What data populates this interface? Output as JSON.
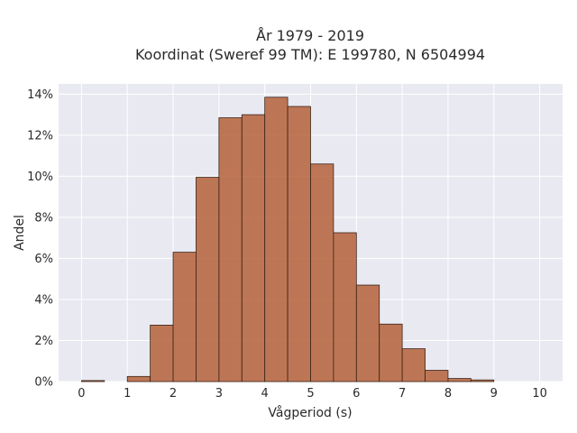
{
  "chart_data": {
    "type": "bar",
    "title_line1": "År 1979 - 2019",
    "title_line2": "Koordinat (Sweref 99 TM): E 199780, N 6504994",
    "xlabel": "Vågperiod (s)",
    "ylabel": "Andel",
    "xlim": [
      -0.5,
      10.5
    ],
    "ylim": [
      0,
      14.5
    ],
    "x_ticks": [
      0,
      1,
      2,
      3,
      4,
      5,
      6,
      7,
      8,
      9,
      10
    ],
    "y_ticks": [
      0,
      2,
      4,
      6,
      8,
      10,
      12,
      14
    ],
    "y_tick_suffix": "%",
    "grid": true,
    "background": "#e9e9f1",
    "bar_color": "#b5623a",
    "bin_width": 0.5,
    "bins": [
      {
        "start": 0.0,
        "value": 0.05
      },
      {
        "start": 0.5,
        "value": 0.0
      },
      {
        "start": 1.0,
        "value": 0.25
      },
      {
        "start": 1.5,
        "value": 2.75
      },
      {
        "start": 2.0,
        "value": 6.3
      },
      {
        "start": 2.5,
        "value": 9.95
      },
      {
        "start": 3.0,
        "value": 12.85
      },
      {
        "start": 3.5,
        "value": 13.0
      },
      {
        "start": 4.0,
        "value": 13.85
      },
      {
        "start": 4.5,
        "value": 13.4
      },
      {
        "start": 5.0,
        "value": 10.6
      },
      {
        "start": 5.5,
        "value": 7.25
      },
      {
        "start": 6.0,
        "value": 4.7
      },
      {
        "start": 6.5,
        "value": 2.8
      },
      {
        "start": 7.0,
        "value": 1.6
      },
      {
        "start": 7.5,
        "value": 0.55
      },
      {
        "start": 8.0,
        "value": 0.15
      },
      {
        "start": 8.5,
        "value": 0.08
      }
    ]
  }
}
